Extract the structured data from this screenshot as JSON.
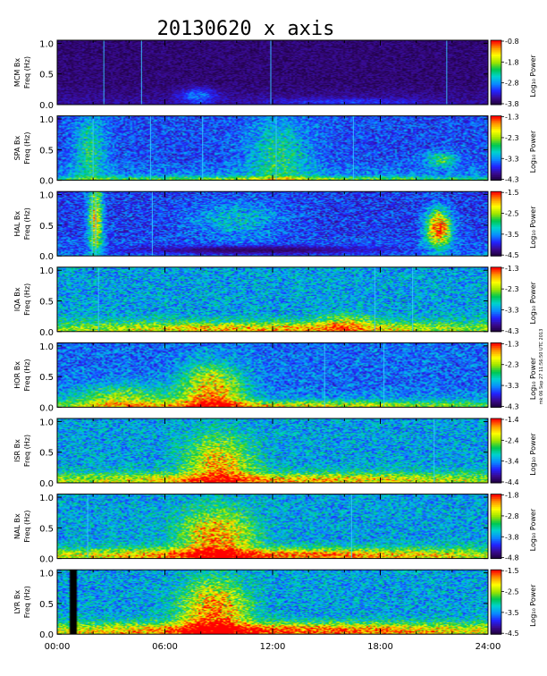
{
  "chart_data": {
    "type": "heatmap",
    "title": "20130620 x axis",
    "x_tick_labels": [
      "00:00",
      "06:00",
      "12:00",
      "18:00",
      "24:00"
    ],
    "x_ticks_hours": [
      0,
      6,
      12,
      18,
      24
    ],
    "xlim_hours": [
      0,
      24
    ],
    "ylim_hz": [
      0.0,
      1.05
    ],
    "y_tick_labels": [
      "0.0",
      "0.5",
      "1.0"
    ],
    "ylabel_units": "Freq (Hz)",
    "colorbar_label": "Log₁₀ Power",
    "side_note": "mk 06 Sep 27 11:56:50 UTC 2013",
    "colormap": [
      "#1a0033",
      "#3a0a8c",
      "#2323ff",
      "#0a8cff",
      "#00d2d2",
      "#00c850",
      "#a0e600",
      "#ffff00",
      "#ff9600",
      "#ff0000"
    ],
    "panels": [
      {
        "station": "MCM Bx",
        "cbar_ticks": [
          "-0.8",
          "-1.8",
          "-2.8",
          "-3.8"
        ],
        "background": 0.02,
        "density": 0.22,
        "vlines": [
          2.6,
          4.7,
          11.9,
          21.7
        ],
        "bursts": [
          {
            "t": 7.8,
            "f": 0.15,
            "wt": 1.0,
            "wf": 0.12,
            "a": 0.22
          },
          {
            "t": 16.0,
            "f": 0.05,
            "wt": 4.0,
            "wf": 0.06,
            "a": 0.12
          }
        ]
      },
      {
        "station": "SPA Bx",
        "cbar_ticks": [
          "-1.3",
          "-2.3",
          "-3.3",
          "-4.3"
        ],
        "background": 0.12,
        "density": 0.5,
        "vlines": [
          2.0,
          5.2,
          8.1,
          12.2,
          16.5
        ],
        "bursts": [
          {
            "t": 1.8,
            "f": 0.5,
            "wt": 0.9,
            "wf": 0.6,
            "a": 0.25
          },
          {
            "t": 12.3,
            "f": 0.4,
            "wt": 1.8,
            "wf": 0.6,
            "a": 0.25
          },
          {
            "t": 21.3,
            "f": 0.35,
            "wt": 0.9,
            "wf": 0.12,
            "a": 0.3
          },
          {
            "t": 12.0,
            "f": 0.02,
            "wt": 14.0,
            "wf": 0.05,
            "a": 0.3
          }
        ]
      },
      {
        "station": "HAL Bx",
        "cbar_ticks": [
          "-1.5",
          "-2.5",
          "-3.5",
          "-4.5"
        ],
        "background": 0.1,
        "density": 0.5,
        "vlines": [
          1.95,
          2.15,
          5.3
        ],
        "bursts": [
          {
            "t": 2.1,
            "f": 0.6,
            "wt": 0.4,
            "wf": 0.7,
            "a": 0.55
          },
          {
            "t": 21.2,
            "f": 0.45,
            "wt": 0.7,
            "wf": 0.3,
            "a": 0.75
          },
          {
            "t": 10.0,
            "f": 0.6,
            "wt": 2.5,
            "wf": 0.3,
            "a": 0.2
          }
        ],
        "dark": [
          {
            "t": 11.0,
            "f": 0.1,
            "wt": 8.0,
            "wf": 0.08
          }
        ]
      },
      {
        "station": "IQA Bx",
        "cbar_ticks": [
          "-1.3",
          "-2.3",
          "-3.3",
          "-4.3"
        ],
        "background": 0.22,
        "density": 0.6,
        "vlines": [
          2.3,
          17.7,
          19.8
        ],
        "bursts": [
          {
            "t": 12.0,
            "f": 0.05,
            "wt": 12.0,
            "wf": 0.1,
            "a": 0.35
          },
          {
            "t": 16.0,
            "f": 0.15,
            "wt": 1.5,
            "wf": 0.15,
            "a": 0.25
          }
        ]
      },
      {
        "station": "HOR Bx",
        "cbar_ticks": [
          "-1.3",
          "-2.3",
          "-3.3",
          "-4.3"
        ],
        "background": 0.15,
        "density": 0.55,
        "vlines": [
          14.9,
          18.2
        ],
        "bursts": [
          {
            "t": 8.6,
            "f": 0.25,
            "wt": 1.8,
            "wf": 0.45,
            "a": 0.55
          },
          {
            "t": 3.5,
            "f": 0.15,
            "wt": 2.5,
            "wf": 0.25,
            "a": 0.3
          },
          {
            "t": 12.0,
            "f": 0.03,
            "wt": 14.0,
            "wf": 0.08,
            "a": 0.35
          }
        ]
      },
      {
        "station": "ISR Bx",
        "cbar_ticks": [
          "-1.4",
          "-2.4",
          "-3.4",
          "-4.4"
        ],
        "background": 0.22,
        "density": 0.6,
        "vlines": [
          21.0
        ],
        "bursts": [
          {
            "t": 9.0,
            "f": 0.3,
            "wt": 1.8,
            "wf": 0.45,
            "a": 0.45
          },
          {
            "t": 12.0,
            "f": 0.05,
            "wt": 14.0,
            "wf": 0.1,
            "a": 0.35
          }
        ]
      },
      {
        "station": "NAL Bx",
        "cbar_ticks": [
          "-1.8",
          "-2.8",
          "-3.8",
          "-4.8"
        ],
        "background": 0.22,
        "density": 0.6,
        "vlines": [
          1.7,
          16.4
        ],
        "bursts": [
          {
            "t": 8.8,
            "f": 0.35,
            "wt": 2.0,
            "wf": 0.45,
            "a": 0.5
          },
          {
            "t": 12.0,
            "f": 0.06,
            "wt": 14.0,
            "wf": 0.1,
            "a": 0.45
          }
        ]
      },
      {
        "station": "LYR Bx",
        "cbar_ticks": [
          "-1.5",
          "-2.5",
          "-3.5",
          "-4.5"
        ],
        "background": 0.22,
        "density": 0.6,
        "vlines": [],
        "bursts": [
          {
            "t": 8.7,
            "f": 0.35,
            "wt": 1.8,
            "wf": 0.5,
            "a": 0.55
          },
          {
            "t": 12.0,
            "f": 0.06,
            "wt": 14.0,
            "wf": 0.12,
            "a": 0.5
          }
        ],
        "gap": [
          0.6,
          1.0
        ]
      }
    ]
  }
}
